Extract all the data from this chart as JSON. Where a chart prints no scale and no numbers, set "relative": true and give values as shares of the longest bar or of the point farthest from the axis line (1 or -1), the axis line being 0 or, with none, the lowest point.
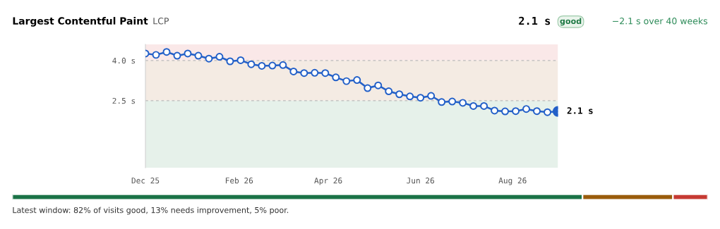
{
  "chart_data": [
    {
      "type": "line",
      "title": "Largest Contentful Paint",
      "subtitle": "LCP",
      "annotations": [
        "2.1 s",
        "good",
        "−2.1 s over 40 weeks"
      ],
      "x": [
        "2025-12-01",
        "2025-12-08",
        "2025-12-15",
        "2025-12-22",
        "2025-12-29",
        "2026-01-05",
        "2026-01-12",
        "2026-01-19",
        "2026-01-26",
        "2026-02-02",
        "2026-02-09",
        "2026-02-16",
        "2026-02-23",
        "2026-03-02",
        "2026-03-09",
        "2026-03-16",
        "2026-03-23",
        "2026-03-30",
        "2026-04-06",
        "2026-04-13",
        "2026-04-20",
        "2026-04-27",
        "2026-05-04",
        "2026-05-11",
        "2026-05-18",
        "2026-05-25",
        "2026-06-01",
        "2026-06-08",
        "2026-06-15",
        "2026-06-22",
        "2026-06-29",
        "2026-07-06",
        "2026-07-13",
        "2026-07-20",
        "2026-07-27",
        "2026-08-03",
        "2026-08-10",
        "2026-08-17",
        "2026-08-24",
        "2026-08-31"
      ],
      "series": [
        {
          "color": "#2360c8",
          "values": [
            4.26,
            4.21,
            4.32,
            4.18,
            4.26,
            4.18,
            4.07,
            4.14,
            3.97,
            4.01,
            3.86,
            3.8,
            3.81,
            3.83,
            3.59,
            3.53,
            3.54,
            3.53,
            3.37,
            3.23,
            3.27,
            2.97,
            3.07,
            2.85,
            2.74,
            2.66,
            2.61,
            2.68,
            2.45,
            2.47,
            2.42,
            2.3,
            2.3,
            2.13,
            2.1,
            2.11,
            2.19,
            2.11,
            2.07,
            2.1
          ],
          "value_labels": [
            null,
            null,
            null,
            null,
            null,
            null,
            null,
            null,
            null,
            null,
            null,
            null,
            null,
            null,
            null,
            null,
            null,
            null,
            null,
            null,
            null,
            null,
            null,
            null,
            null,
            null,
            null,
            null,
            null,
            null,
            null,
            null,
            null,
            null,
            null,
            null,
            null,
            null,
            null,
            "2.1 s"
          ]
        }
      ],
      "marker": "circle",
      "line_style": "solid",
      "xlim": [
        "2025-12-01",
        "2026-08-31"
      ],
      "xticks": [
        {
          "value": "2025-12-01",
          "label": "Dec 25"
        },
        {
          "value": "2026-02-01",
          "label": "Feb 26"
        },
        {
          "value": "2026-04-01",
          "label": "Apr 26"
        },
        {
          "value": "2026-06-01",
          "label": "Jun 26"
        },
        {
          "value": "2026-08-01",
          "label": "Aug 26"
        }
      ],
      "ylim": [
        0,
        4.6
      ],
      "yticks": [
        {
          "value": 2.5,
          "label": "2.5 s"
        },
        {
          "value": 4.0,
          "label": "4.0 s"
        }
      ],
      "bands": [
        {
          "axis": "y",
          "from": 0,
          "to": 2.5,
          "color": "#e6f1ea"
        },
        {
          "axis": "y",
          "from": 2.5,
          "to": 4.0,
          "color": "#f4ebe3"
        },
        {
          "axis": "y",
          "from": 4.0,
          "to": 4.6,
          "color": "#fae8e8"
        }
      ],
      "ref_lines": [
        {
          "axis": "y",
          "value": 4.0,
          "color": "#bbbbbb",
          "line_style": "dashed"
        },
        {
          "axis": "y",
          "value": 2.5,
          "color": "#bbbbbb",
          "line_style": "dashed"
        }
      ],
      "grid": false,
      "legend": false
    },
    {
      "type": "bar",
      "orientation": "horizontal",
      "stacked": true,
      "relative": true,
      "categories": [
        null
      ],
      "series": [
        {
          "color": "#1b7347",
          "values": [
            0.82
          ]
        },
        {
          "color": "#9a5c0c",
          "values": [
            0.13
          ]
        },
        {
          "color": "#c63a33",
          "values": [
            0.05
          ]
        }
      ],
      "annotations": [
        "Latest window: 82% of visits good, 13% needs improvement, 5% poor."
      ],
      "legend": false
    }
  ]
}
